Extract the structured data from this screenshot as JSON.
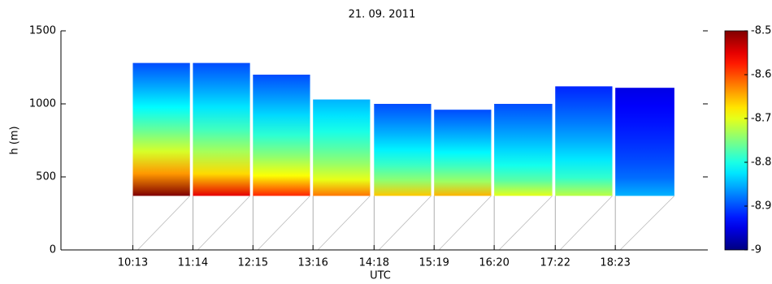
{
  "chart_data": {
    "type": "heatmap",
    "title": "21. 09. 2011",
    "xlabel": "UTC",
    "ylabel": "h (m)",
    "xlim": [
      540,
      1192
    ],
    "ylim": [
      0,
      1500
    ],
    "xticks": [
      {
        "value": 613,
        "label": "10:13"
      },
      {
        "value": 674,
        "label": "11:14"
      },
      {
        "value": 735,
        "label": "12:15"
      },
      {
        "value": 796,
        "label": "13:16"
      },
      {
        "value": 858,
        "label": "14:18"
      },
      {
        "value": 919,
        "label": "15:19"
      },
      {
        "value": 980,
        "label": "16:20"
      },
      {
        "value": 1042,
        "label": "17:22"
      },
      {
        "value": 1103,
        "label": "18:23"
      }
    ],
    "yticks": [
      0,
      500,
      1000,
      1500
    ],
    "blocks": [
      {
        "x0": 613,
        "x1": 671,
        "bottom": 370,
        "top": 1280,
        "value_bottom": -8.5,
        "value_top": -8.9
      },
      {
        "x0": 674,
        "x1": 732,
        "bottom": 370,
        "top": 1280,
        "value_bottom": -8.55,
        "value_top": -8.9
      },
      {
        "x0": 735,
        "x1": 793,
        "bottom": 370,
        "top": 1200,
        "value_bottom": -8.58,
        "value_top": -8.9
      },
      {
        "x0": 796,
        "x1": 854,
        "bottom": 370,
        "top": 1030,
        "value_bottom": -8.62,
        "value_top": -8.85
      },
      {
        "x0": 858,
        "x1": 916,
        "bottom": 370,
        "top": 1000,
        "value_bottom": -8.66,
        "value_top": -8.9
      },
      {
        "x0": 919,
        "x1": 977,
        "bottom": 370,
        "top": 960,
        "value_bottom": -8.65,
        "value_top": -8.9
      },
      {
        "x0": 980,
        "x1": 1039,
        "bottom": 370,
        "top": 1000,
        "value_bottom": -8.7,
        "value_top": -8.9
      },
      {
        "x0": 1042,
        "x1": 1100,
        "bottom": 370,
        "top": 1120,
        "value_bottom": -8.72,
        "value_top": -8.92
      },
      {
        "x0": 1103,
        "x1": 1163,
        "bottom": 370,
        "top": 1110,
        "value_bottom": -8.85,
        "value_top": -8.95
      }
    ],
    "clim": [
      -9,
      -8.5
    ],
    "cticks": [
      -9,
      -8.9,
      -8.8,
      -8.7,
      -8.6,
      -8.5
    ]
  }
}
